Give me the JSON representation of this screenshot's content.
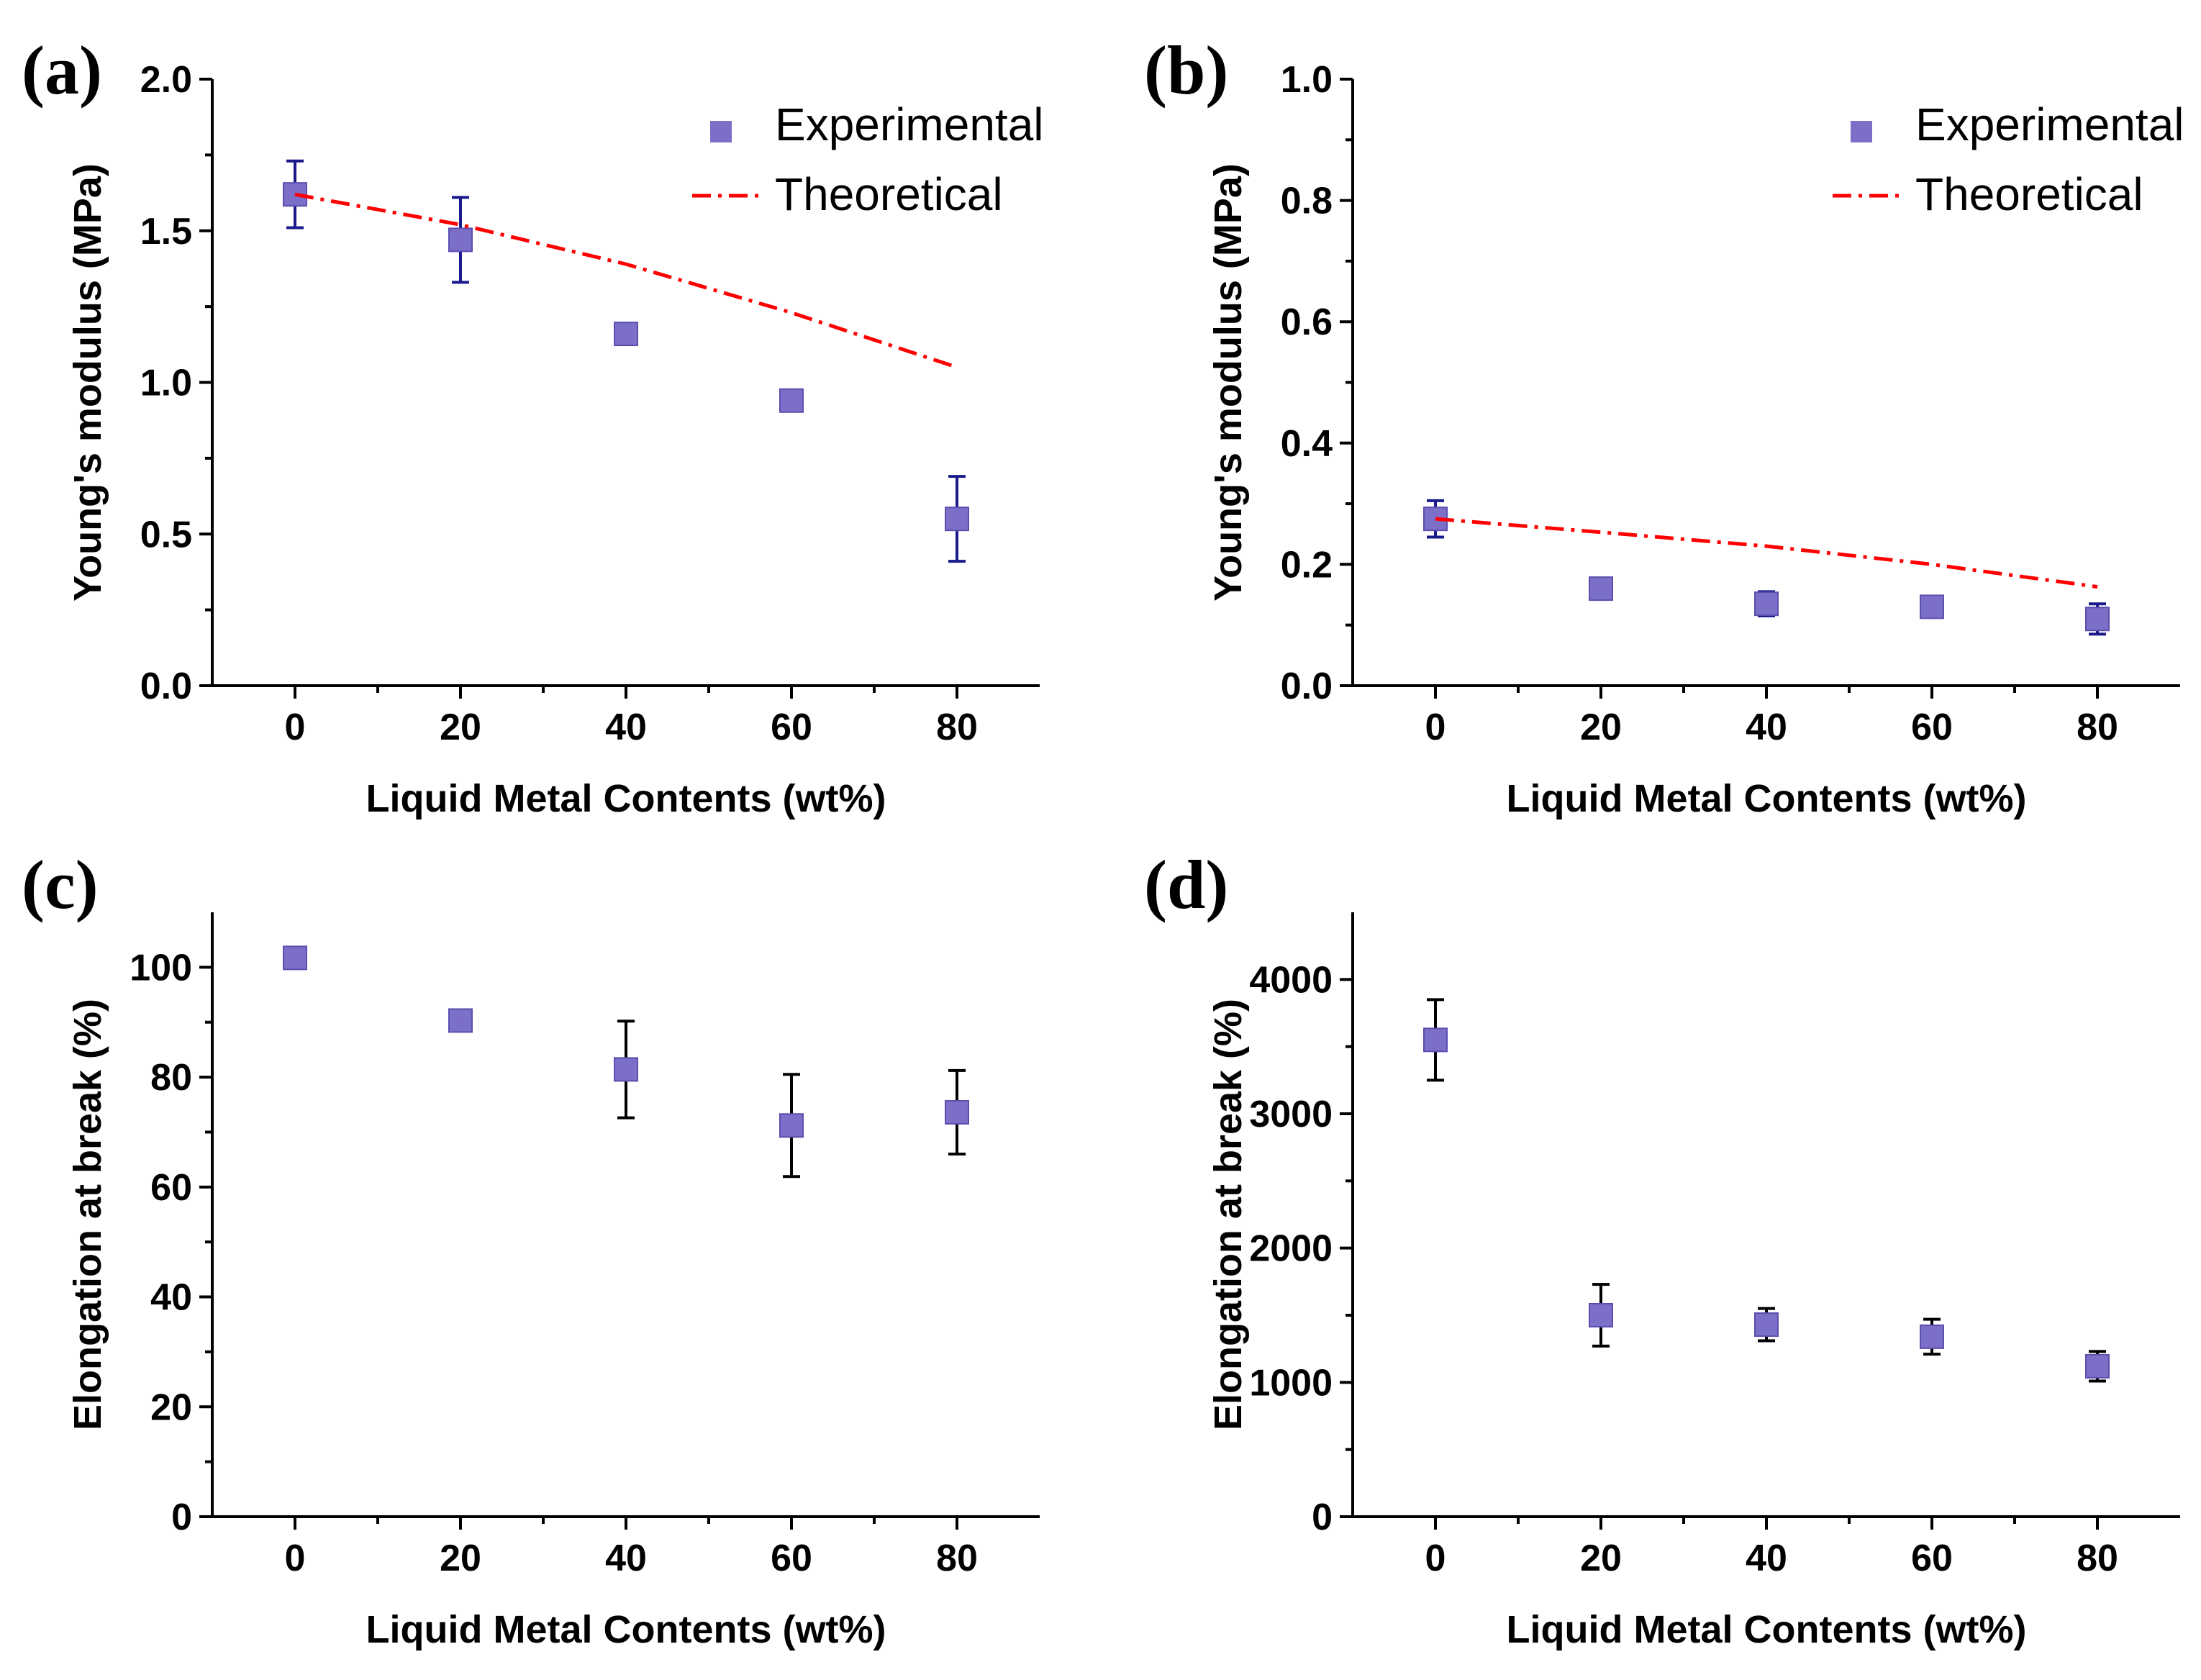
{
  "colors": {
    "marker": "#7b6fc7",
    "marker_edge": "#5a4fb0",
    "error_bar_blue": "#1a1a8c",
    "error_bar_black": "#000000",
    "theoretical_line": "#ff0000",
    "axis": "#000000"
  },
  "chart_data": [
    {
      "panel": "(a)",
      "type": "scatter",
      "xlabel": "Liquid Metal Contents (wt%)",
      "ylabel": "Young's modulus (MPa)",
      "xlim": [
        -10,
        90
      ],
      "ylim": [
        0,
        2.0
      ],
      "xticks": [
        0,
        20,
        40,
        60,
        80
      ],
      "xtick_labels": [
        "0",
        "20",
        "40",
        "60",
        "80"
      ],
      "yticks": [
        0,
        0.5,
        1.0,
        1.5,
        2.0
      ],
      "ytick_labels": [
        "0.0",
        "0.5",
        "1.0",
        "1.5",
        "2.0"
      ],
      "legend": {
        "position": "top-right",
        "entries": [
          "Experimental",
          "Theoretical"
        ]
      },
      "error_bar_color": "blue",
      "series": [
        {
          "name": "Experimental",
          "kind": "points",
          "x": [
            0,
            20,
            40,
            60,
            80
          ],
          "y": [
            1.62,
            1.47,
            1.16,
            0.94,
            0.55
          ],
          "err": [
            0.11,
            0.14,
            0.03,
            0.03,
            0.14
          ]
        },
        {
          "name": "Theoretical",
          "kind": "dashdot-line",
          "x": [
            0,
            20,
            40,
            60,
            80
          ],
          "y": [
            1.62,
            1.52,
            1.39,
            1.23,
            1.05
          ]
        }
      ]
    },
    {
      "panel": "(b)",
      "type": "scatter",
      "xlabel": "Liquid Metal Contents (wt%)",
      "ylabel": "Young's modulus (MPa)",
      "xlim": [
        -10,
        90
      ],
      "ylim": [
        0,
        1.0
      ],
      "xticks": [
        0,
        20,
        40,
        60,
        80
      ],
      "xtick_labels": [
        "0",
        "20",
        "40",
        "60",
        "80"
      ],
      "yticks": [
        0,
        0.2,
        0.4,
        0.6,
        0.8,
        1.0
      ],
      "ytick_labels": [
        "0.0",
        "0.2",
        "0.4",
        "0.6",
        "0.8",
        "1.0"
      ],
      "legend": {
        "position": "top-right",
        "entries": [
          "Experimental",
          "Theoretical"
        ]
      },
      "error_bar_color": "blue",
      "series": [
        {
          "name": "Experimental",
          "kind": "points",
          "x": [
            0,
            20,
            40,
            60,
            80
          ],
          "y": [
            0.275,
            0.16,
            0.135,
            0.13,
            0.11
          ],
          "err": [
            0.03,
            0.015,
            0.02,
            0.012,
            0.025
          ]
        },
        {
          "name": "Theoretical",
          "kind": "dashdot-line",
          "x": [
            0,
            20,
            40,
            60,
            80
          ],
          "y": [
            0.275,
            0.253,
            0.23,
            0.2,
            0.163
          ]
        }
      ]
    },
    {
      "panel": "(c)",
      "type": "scatter",
      "xlabel": "Liquid Metal Contents (wt%)",
      "ylabel": "Elongation at break (%)",
      "xlim": [
        -10,
        90
      ],
      "ylim": [
        0,
        110
      ],
      "xticks": [
        0,
        20,
        40,
        60,
        80
      ],
      "xtick_labels": [
        "0",
        "20",
        "40",
        "60",
        "80"
      ],
      "yticks": [
        0,
        20,
        40,
        60,
        80,
        100
      ],
      "ytick_labels": [
        "0",
        "20",
        "40",
        "60",
        "80",
        "100"
      ],
      "error_bar_color": "black",
      "series": [
        {
          "kind": "points",
          "x": [
            0,
            20,
            40,
            60,
            80
          ],
          "y": [
            101.7,
            90.3,
            81.4,
            71.2,
            73.6
          ],
          "err": [
            1.5,
            1.2,
            8.8,
            9.3,
            7.6
          ]
        }
      ]
    },
    {
      "panel": "(d)",
      "type": "scatter",
      "xlabel": "Liquid Metal Contents (wt%)",
      "ylabel": "Elongation at break (%)",
      "xlim": [
        -10,
        90
      ],
      "ylim": [
        0,
        4500
      ],
      "xticks": [
        0,
        20,
        40,
        60,
        80
      ],
      "xtick_labels": [
        "0",
        "20",
        "40",
        "60",
        "80"
      ],
      "yticks": [
        0,
        1000,
        2000,
        3000,
        4000
      ],
      "ytick_labels": [
        "0",
        "1000",
        "2000",
        "3000",
        "4000"
      ],
      "error_bar_color": "black",
      "series": [
        {
          "kind": "points",
          "x": [
            0,
            20,
            40,
            60,
            80
          ],
          "y": [
            3550,
            1500,
            1430,
            1340,
            1120
          ],
          "err": [
            300,
            230,
            120,
            130,
            110
          ]
        }
      ]
    }
  ]
}
